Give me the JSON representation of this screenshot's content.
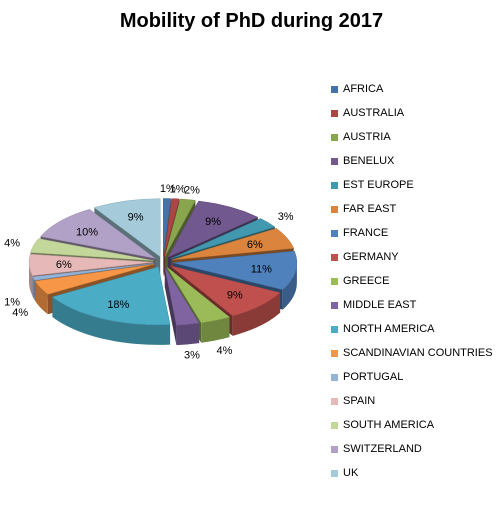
{
  "chart_data": {
    "type": "pie",
    "title": "Mobility of PhD during 2017",
    "legend_position": "right",
    "categories": [
      "AFRICA",
      "AUSTRALIA",
      "AUSTRIA",
      "BENELUX",
      "EST EUROPE",
      "FAR EAST",
      "FRANCE",
      "GERMANY",
      "GREECE",
      "MIDDLE EAST",
      "NORTH AMERICA",
      "SCANDINAVIAN COUNTRIES",
      "PORTUGAL",
      "SPAIN",
      "SOUTH AMERICA",
      "SWITZERLAND",
      "UK"
    ],
    "values": [
      1,
      1,
      2,
      9,
      3,
      6,
      11,
      9,
      4,
      3,
      18,
      4,
      1,
      6,
      4,
      10,
      9
    ],
    "labels": [
      "1%",
      "1%",
      "2%",
      "9%",
      "3%",
      "6%",
      "11%",
      "9%",
      "4%",
      "3%",
      "18%",
      "4%",
      "1%",
      "6%",
      "4%",
      "10%",
      "9%"
    ],
    "colors": [
      "#4572A7",
      "#AA4643",
      "#89A54E",
      "#71588F",
      "#4198AF",
      "#DB843D",
      "#4F81BD",
      "#C0504D",
      "#9BBB59",
      "#8064A2",
      "#4BACC6",
      "#F79646",
      "#95B3D7",
      "#E6B9B8",
      "#C4D79B",
      "#B2A1C7",
      "#A5CBDB"
    ],
    "exploded": true,
    "style": "3d"
  }
}
